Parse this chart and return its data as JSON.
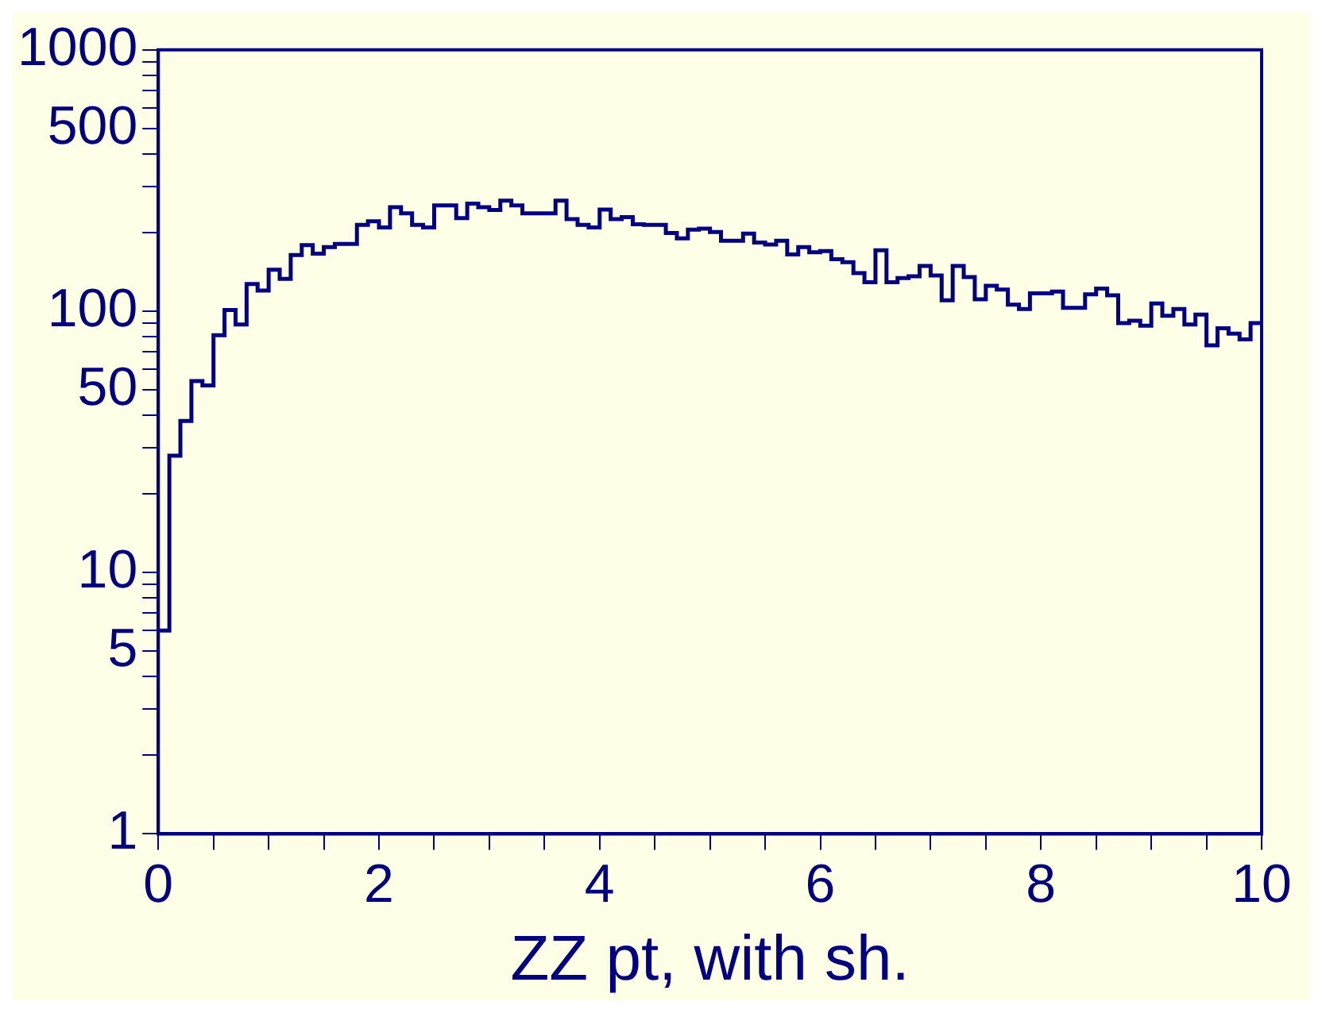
{
  "chart_data": {
    "type": "histogram",
    "xlabel": "ZZ pt, with sh.",
    "color": "#000080",
    "log": "y",
    "grid": false,
    "legend": false,
    "bins": [
      0,
      0.1,
      0.2,
      0.3,
      0.4,
      0.5,
      0.6,
      0.7,
      0.8,
      0.9,
      1,
      1.1,
      1.2,
      1.3,
      1.4,
      1.5,
      1.6,
      1.7,
      1.8,
      1.9,
      2,
      2.1,
      2.2,
      2.3,
      2.4,
      2.5,
      2.6,
      2.7,
      2.8,
      2.9,
      3,
      3.1,
      3.2,
      3.3,
      3.4,
      3.5,
      3.6,
      3.7,
      3.8,
      3.9,
      4,
      4.1,
      4.2,
      4.3,
      4.4,
      4.5,
      4.6,
      4.7,
      4.8,
      4.9,
      5,
      5.1,
      5.2,
      5.3,
      5.4,
      5.5,
      5.6,
      5.7,
      5.8,
      5.9,
      6,
      6.1,
      6.2,
      6.3,
      6.4,
      6.5,
      6.6,
      6.7,
      6.8,
      6.9,
      7,
      7.1,
      7.2,
      7.3,
      7.4,
      7.5,
      7.6,
      7.7,
      7.8,
      7.9,
      8,
      8.1,
      8.2,
      8.3,
      8.4,
      8.5,
      8.6,
      8.7,
      8.8,
      8.9,
      9,
      9.1,
      9.2,
      9.3,
      9.4,
      9.5,
      9.6,
      9.7,
      9.8,
      9.9,
      10
    ],
    "values": [
      6,
      28,
      38,
      54,
      52,
      81,
      101,
      89,
      127,
      120,
      144,
      133,
      164,
      179,
      166,
      176,
      181,
      181,
      214,
      221,
      209,
      250,
      237,
      214,
      209,
      254,
      254,
      227,
      258,
      250,
      244,
      265,
      254,
      237,
      237,
      237,
      265,
      225,
      214,
      209,
      245,
      225,
      229,
      215,
      214,
      214,
      199,
      190,
      205,
      207,
      201,
      186,
      186,
      198,
      183,
      180,
      186,
      165,
      176,
      168,
      170,
      158,
      154,
      140,
      129,
      171,
      129,
      134,
      136,
      149,
      137,
      110,
      149,
      135,
      111,
      125,
      121,
      106,
      102,
      117,
      117,
      119,
      103,
      103,
      116,
      122,
      115,
      90,
      92,
      88,
      107,
      96,
      102,
      89,
      97,
      74,
      86,
      82,
      78,
      90
    ],
    "xlim": [
      0,
      10
    ],
    "xticks": [
      0,
      {
        "value": 0.5,
        "label": null
      },
      {
        "value": 1,
        "label": null
      },
      {
        "value": 1.5,
        "label": null
      },
      2,
      {
        "value": 2.5,
        "label": null
      },
      {
        "value": 3,
        "label": null
      },
      {
        "value": 3.5,
        "label": null
      },
      4,
      {
        "value": 4.5,
        "label": null
      },
      {
        "value": 5,
        "label": null
      },
      {
        "value": 5.5,
        "label": null
      },
      6,
      {
        "value": 6.5,
        "label": null
      },
      {
        "value": 7,
        "label": null
      },
      {
        "value": 7.5,
        "label": null
      },
      8,
      {
        "value": 8.5,
        "label": null
      },
      {
        "value": 9,
        "label": null
      },
      {
        "value": 9.5,
        "label": null
      },
      10
    ],
    "ylim": [
      1,
      1000
    ],
    "yticks": [
      1,
      {
        "value": 2,
        "label": null
      },
      {
        "value": 3,
        "label": null
      },
      {
        "value": 4,
        "label": null
      },
      5,
      {
        "value": 6,
        "label": null
      },
      {
        "value": 7,
        "label": null
      },
      {
        "value": 8,
        "label": null
      },
      {
        "value": 9,
        "label": null
      },
      10,
      {
        "value": 20,
        "label": null
      },
      {
        "value": 30,
        "label": null
      },
      {
        "value": 40,
        "label": null
      },
      50,
      {
        "value": 60,
        "label": null
      },
      {
        "value": 70,
        "label": null
      },
      {
        "value": 80,
        "label": null
      },
      {
        "value": 90,
        "label": null
      },
      100,
      {
        "value": 200,
        "label": null
      },
      {
        "value": 300,
        "label": null
      },
      {
        "value": 400,
        "label": null
      },
      500,
      {
        "value": 600,
        "label": null
      },
      {
        "value": 700,
        "label": null
      },
      {
        "value": 800,
        "label": null
      },
      {
        "value": 900,
        "label": null
      },
      1000
    ]
  }
}
